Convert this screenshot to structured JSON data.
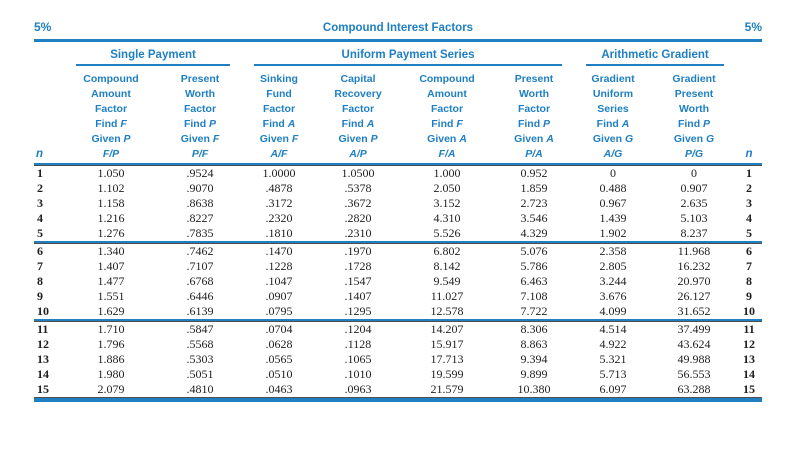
{
  "colors": {
    "accent": "#1e7fc2",
    "rule_dark": "#4f4f4f",
    "body_text": "#1f1f1f"
  },
  "page": {
    "rate_left": "5%",
    "title": "Compound Interest Factors",
    "rate_right": "5%"
  },
  "table": {
    "n_header": "n",
    "groups": [
      {
        "label": "Single Payment",
        "span": 2
      },
      {
        "label": "Uniform Payment Series",
        "span": 4
      },
      {
        "label": "Arithmetic Gradient",
        "span": 2
      }
    ],
    "columns": [
      {
        "name_lines": [
          "Compound",
          "Amount",
          "Factor"
        ],
        "find_prefix": "Find",
        "find_sym": "F",
        "given_prefix": "Given",
        "given_sym": "P",
        "ratio": "F/P"
      },
      {
        "name_lines": [
          "Present",
          "Worth",
          "Factor"
        ],
        "find_prefix": "Find",
        "find_sym": "P",
        "given_prefix": "Given",
        "given_sym": "F",
        "ratio": "P/F"
      },
      {
        "name_lines": [
          "Sinking",
          "Fund",
          "Factor"
        ],
        "find_prefix": "Find",
        "find_sym": "A",
        "given_prefix": "Given",
        "given_sym": "F",
        "ratio": "A/F"
      },
      {
        "name_lines": [
          "Capital",
          "Recovery",
          "Factor"
        ],
        "find_prefix": "Find",
        "find_sym": "A",
        "given_prefix": "Given",
        "given_sym": "P",
        "ratio": "A/P"
      },
      {
        "name_lines": [
          "Compound",
          "Amount",
          "Factor"
        ],
        "find_prefix": "Find",
        "find_sym": "F",
        "given_prefix": "Given",
        "given_sym": "A",
        "ratio": "F/A"
      },
      {
        "name_lines": [
          "Present",
          "Worth",
          "Factor"
        ],
        "find_prefix": "Find",
        "find_sym": "P",
        "given_prefix": "Given",
        "given_sym": "A",
        "ratio": "P/A"
      },
      {
        "name_lines": [
          "Gradient",
          "Uniform",
          "Series"
        ],
        "find_prefix": "Find",
        "find_sym": "A",
        "given_prefix": "Given",
        "given_sym": "G",
        "ratio": "A/G"
      },
      {
        "name_lines": [
          "Gradient",
          "Present",
          "Worth"
        ],
        "find_prefix": "Find",
        "find_sym": "P",
        "given_prefix": "Given",
        "given_sym": "G",
        "ratio": "P/G"
      }
    ],
    "row_groups": [
      {
        "rows": [
          {
            "n": "1",
            "values": [
              "1.050",
              ".9524",
              "1.0000",
              "1.0500",
              "1.000",
              "0.952",
              "0",
              "0"
            ]
          },
          {
            "n": "2",
            "values": [
              "1.102",
              ".9070",
              ".4878",
              ".5378",
              "2.050",
              "1.859",
              "0.488",
              "0.907"
            ]
          },
          {
            "n": "3",
            "values": [
              "1.158",
              ".8638",
              ".3172",
              ".3672",
              "3.152",
              "2.723",
              "0.967",
              "2.635"
            ]
          },
          {
            "n": "4",
            "values": [
              "1.216",
              ".8227",
              ".2320",
              ".2820",
              "4.310",
              "3.546",
              "1.439",
              "5.103"
            ]
          },
          {
            "n": "5",
            "values": [
              "1.276",
              ".7835",
              ".1810",
              ".2310",
              "5.526",
              "4.329",
              "1.902",
              "8.237"
            ]
          }
        ]
      },
      {
        "rows": [
          {
            "n": "6",
            "values": [
              "1.340",
              ".7462",
              ".1470",
              ".1970",
              "6.802",
              "5.076",
              "2.358",
              "11.968"
            ]
          },
          {
            "n": "7",
            "values": [
              "1.407",
              ".7107",
              ".1228",
              ".1728",
              "8.142",
              "5.786",
              "2.805",
              "16.232"
            ]
          },
          {
            "n": "8",
            "values": [
              "1.477",
              ".6768",
              ".1047",
              ".1547",
              "9.549",
              "6.463",
              "3.244",
              "20.970"
            ]
          },
          {
            "n": "9",
            "values": [
              "1.551",
              ".6446",
              ".0907",
              ".1407",
              "11.027",
              "7.108",
              "3.676",
              "26.127"
            ]
          },
          {
            "n": "10",
            "values": [
              "1.629",
              ".6139",
              ".0795",
              ".1295",
              "12.578",
              "7.722",
              "4.099",
              "31.652"
            ]
          }
        ]
      },
      {
        "rows": [
          {
            "n": "11",
            "values": [
              "1.710",
              ".5847",
              ".0704",
              ".1204",
              "14.207",
              "8.306",
              "4.514",
              "37.499"
            ]
          },
          {
            "n": "12",
            "values": [
              "1.796",
              ".5568",
              ".0628",
              ".1128",
              "15.917",
              "8.863",
              "4.922",
              "43.624"
            ]
          },
          {
            "n": "13",
            "values": [
              "1.886",
              ".5303",
              ".0565",
              ".1065",
              "17.713",
              "9.394",
              "5.321",
              "49.988"
            ]
          },
          {
            "n": "14",
            "values": [
              "1.980",
              ".5051",
              ".0510",
              ".1010",
              "19.599",
              "9.899",
              "5.713",
              "56.553"
            ]
          },
          {
            "n": "15",
            "values": [
              "2.079",
              ".4810",
              ".0463",
              ".0963",
              "21.579",
              "10.380",
              "6.097",
              "63.288"
            ]
          }
        ]
      }
    ]
  }
}
